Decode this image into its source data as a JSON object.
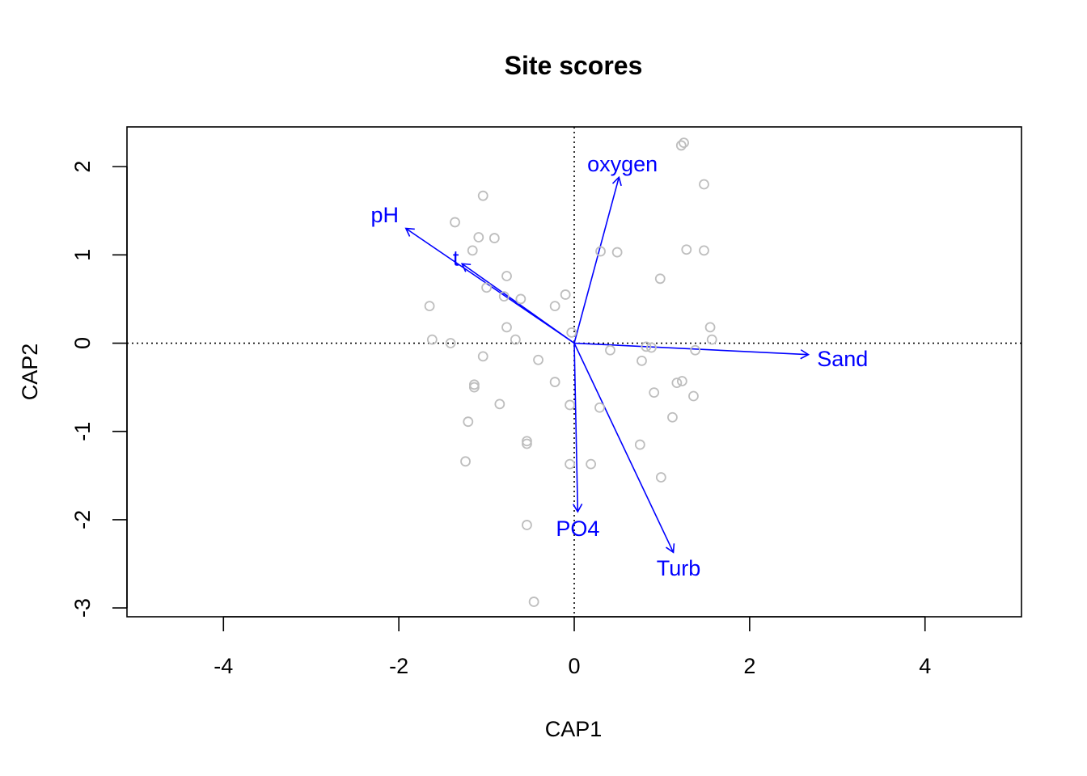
{
  "chart_data": {
    "type": "scatter",
    "title": "Site scores",
    "xlabel": "CAP1",
    "ylabel": "CAP2",
    "xlim": [
      -5.1,
      5.1
    ],
    "ylim": [
      -3.1,
      2.45
    ],
    "x_ticks": [
      -4,
      -2,
      0,
      2,
      4
    ],
    "y_ticks": [
      -3,
      -2,
      -1,
      0,
      1,
      2
    ],
    "x_tick_labels": [
      "-4",
      "-2",
      "0",
      "2",
      "4"
    ],
    "y_tick_labels": [
      "-3",
      "-2",
      "-1",
      "0",
      "1",
      "2"
    ],
    "reference_lines": {
      "x": 0,
      "y": 0,
      "style": "dotted"
    },
    "colors": {
      "points": "#BEBEBE",
      "vectors": "#0000FF",
      "axes": "#000000"
    },
    "sites": [
      {
        "x": 1.22,
        "y": 2.24
      },
      {
        "x": 1.25,
        "y": 2.27
      },
      {
        "x": 1.48,
        "y": 1.8
      },
      {
        "x": -1.04,
        "y": 1.67
      },
      {
        "x": -1.36,
        "y": 1.37
      },
      {
        "x": -1.09,
        "y": 1.2
      },
      {
        "x": -0.91,
        "y": 1.19
      },
      {
        "x": -1.16,
        "y": 1.05
      },
      {
        "x": 0.3,
        "y": 1.04
      },
      {
        "x": 0.49,
        "y": 1.03
      },
      {
        "x": 1.28,
        "y": 1.06
      },
      {
        "x": 1.48,
        "y": 1.05
      },
      {
        "x": -0.77,
        "y": 0.76
      },
      {
        "x": 0.98,
        "y": 0.73
      },
      {
        "x": -1.0,
        "y": 0.63
      },
      {
        "x": -0.1,
        "y": 0.55
      },
      {
        "x": -0.8,
        "y": 0.53
      },
      {
        "x": -0.61,
        "y": 0.5
      },
      {
        "x": -0.22,
        "y": 0.42
      },
      {
        "x": -1.65,
        "y": 0.42
      },
      {
        "x": -0.77,
        "y": 0.18
      },
      {
        "x": 1.55,
        "y": 0.18
      },
      {
        "x": -0.03,
        "y": 0.12
      },
      {
        "x": -1.62,
        "y": 0.04
      },
      {
        "x": -0.67,
        "y": 0.04
      },
      {
        "x": 1.57,
        "y": 0.04
      },
      {
        "x": -1.41,
        "y": 0.0
      },
      {
        "x": 0.82,
        "y": -0.04
      },
      {
        "x": 0.88,
        "y": -0.05
      },
      {
        "x": 0.41,
        "y": -0.08
      },
      {
        "x": 1.38,
        "y": -0.08
      },
      {
        "x": -1.04,
        "y": -0.15
      },
      {
        "x": -0.41,
        "y": -0.19
      },
      {
        "x": 0.77,
        "y": -0.2
      },
      {
        "x": -0.22,
        "y": -0.44
      },
      {
        "x": 1.17,
        "y": -0.45
      },
      {
        "x": 1.23,
        "y": -0.43
      },
      {
        "x": -1.14,
        "y": -0.47
      },
      {
        "x": -1.14,
        "y": -0.5
      },
      {
        "x": 0.91,
        "y": -0.56
      },
      {
        "x": 1.36,
        "y": -0.6
      },
      {
        "x": -0.85,
        "y": -0.69
      },
      {
        "x": -0.05,
        "y": -0.7
      },
      {
        "x": 0.29,
        "y": -0.73
      },
      {
        "x": 1.12,
        "y": -0.84
      },
      {
        "x": -1.21,
        "y": -0.89
      },
      {
        "x": -0.54,
        "y": -1.11
      },
      {
        "x": -0.54,
        "y": -1.14
      },
      {
        "x": 0.75,
        "y": -1.15
      },
      {
        "x": -1.24,
        "y": -1.34
      },
      {
        "x": -0.05,
        "y": -1.37
      },
      {
        "x": 0.19,
        "y": -1.37
      },
      {
        "x": 0.99,
        "y": -1.52
      },
      {
        "x": -0.54,
        "y": -2.06
      },
      {
        "x": -0.46,
        "y": -2.93
      }
    ],
    "biplot_arrows": [
      {
        "name": "oxygen",
        "x": 0.51,
        "y": 1.88
      },
      {
        "name": "pH",
        "x": -1.92,
        "y": 1.3
      },
      {
        "name": "t",
        "x": -1.28,
        "y": 0.9
      },
      {
        "name": "Sand",
        "x": 2.67,
        "y": -0.13
      },
      {
        "name": "PO4",
        "x": 0.04,
        "y": -1.91
      },
      {
        "name": "Turb",
        "x": 1.13,
        "y": -2.37
      }
    ],
    "biplot_labels": [
      {
        "name": "oxygen",
        "x": 0.55,
        "y": 2.03
      },
      {
        "name": "pH",
        "x": -2.16,
        "y": 1.45
      },
      {
        "name": "t",
        "x": -1.35,
        "y": 0.96
      },
      {
        "name": "Sand",
        "x": 3.06,
        "y": -0.18
      },
      {
        "name": "PO4",
        "x": 0.04,
        "y": -2.1
      },
      {
        "name": "Turb",
        "x": 1.19,
        "y": -2.55
      }
    ]
  }
}
